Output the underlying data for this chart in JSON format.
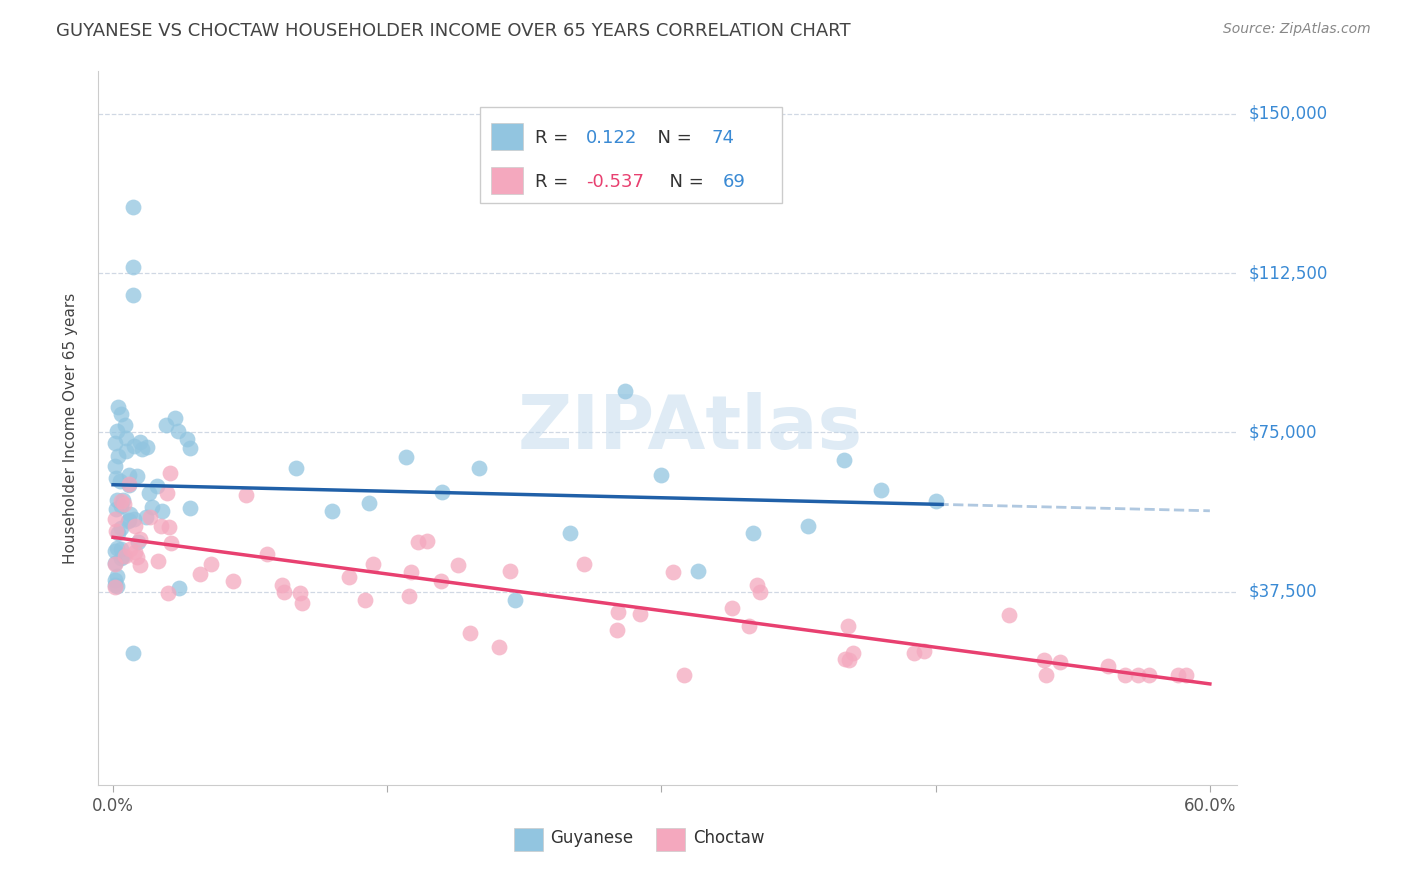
{
  "title": "GUYANESE VS CHOCTAW HOUSEHOLDER INCOME OVER 65 YEARS CORRELATION CHART",
  "source": "Source: ZipAtlas.com",
  "ylabel": "Householder Income Over 65 years",
  "xlim": [
    0.0,
    0.6
  ],
  "ylim": [
    0,
    150000
  ],
  "yticks": [
    37500,
    75000,
    112500,
    150000
  ],
  "ytick_labels": [
    "$37,500",
    "$75,000",
    "$112,500",
    "$150,000"
  ],
  "xticks": [
    0.0,
    0.15,
    0.3,
    0.45,
    0.6
  ],
  "xtick_labels": [
    "0.0%",
    "",
    "",
    "",
    "60.0%"
  ],
  "watermark": "ZIPAtlas",
  "guyanese_R": 0.122,
  "guyanese_N": 74,
  "choctaw_R": -0.537,
  "choctaw_N": 69,
  "blue_color": "#92c5e0",
  "pink_color": "#f4a8be",
  "blue_line_color": "#2060a8",
  "blue_dash_color": "#b0c8e0",
  "pink_line_color": "#e84070",
  "guyanese_seed": 42,
  "choctaw_seed": 99,
  "legend_title_color": "#333333",
  "legend_value_color_blue": "#3a8ad4",
  "legend_value_color_pink": "#e84070",
  "right_label_color": "#3a8ad4",
  "title_color": "#444444",
  "source_color": "#888888"
}
